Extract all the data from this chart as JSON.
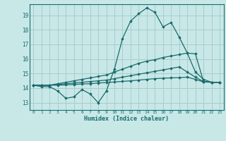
{
  "bg_color": "#c8e8e8",
  "grid_color": "#aacccc",
  "line_color": "#1a6b6b",
  "xlabel": "Humidex (Indice chaleur)",
  "xlim": [
    -0.5,
    23.5
  ],
  "ylim": [
    12.5,
    19.75
  ],
  "yticks": [
    13,
    14,
    15,
    16,
    17,
    18,
    19
  ],
  "xticks": [
    0,
    1,
    2,
    3,
    4,
    5,
    6,
    7,
    8,
    9,
    10,
    11,
    12,
    13,
    14,
    15,
    16,
    17,
    18,
    19,
    20,
    21,
    22,
    23
  ],
  "series": [
    [
      14.2,
      14.1,
      14.1,
      13.8,
      13.3,
      13.4,
      13.9,
      13.6,
      13.0,
      13.8,
      15.3,
      17.4,
      18.6,
      19.1,
      19.5,
      19.2,
      18.2,
      18.5,
      17.5,
      16.4,
      15.1,
      14.6,
      14.4,
      14.4
    ],
    [
      14.2,
      14.2,
      14.2,
      14.3,
      14.4,
      14.5,
      14.6,
      14.7,
      14.8,
      14.9,
      15.1,
      15.3,
      15.5,
      15.7,
      15.85,
      15.95,
      16.1,
      16.2,
      16.3,
      16.4,
      16.35,
      14.45,
      14.4,
      14.4
    ],
    [
      14.2,
      14.2,
      14.2,
      14.25,
      14.3,
      14.35,
      14.4,
      14.45,
      14.5,
      14.55,
      14.65,
      14.75,
      14.85,
      14.95,
      15.05,
      15.15,
      15.25,
      15.35,
      15.45,
      15.1,
      14.75,
      14.45,
      14.4,
      14.4
    ],
    [
      14.2,
      14.2,
      14.2,
      14.2,
      14.22,
      14.25,
      14.28,
      14.3,
      14.35,
      14.38,
      14.42,
      14.46,
      14.5,
      14.55,
      14.6,
      14.65,
      14.68,
      14.7,
      14.72,
      14.75,
      14.6,
      14.42,
      14.4,
      14.4
    ]
  ]
}
